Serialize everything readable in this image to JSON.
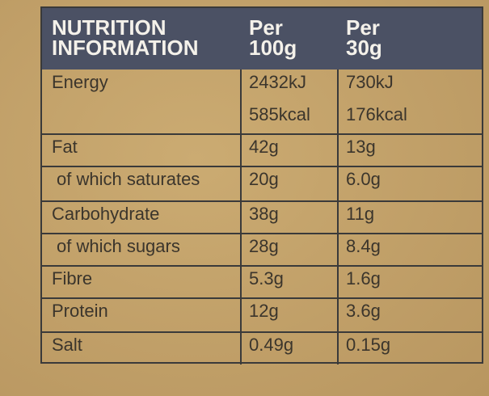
{
  "header": {
    "title": [
      "NUTRITION",
      "INFORMATION"
    ],
    "per_100g": [
      "Per",
      "100g"
    ],
    "per_30g": [
      "Per",
      "30g"
    ]
  },
  "rows": [
    {
      "nutrient": "Energy",
      "per_100g": [
        "2432kJ",
        "585kcal"
      ],
      "per_30g": [
        "730kJ",
        "176kcal"
      ]
    },
    {
      "nutrient": "Fat",
      "per_100g": [
        "42g"
      ],
      "per_30g": [
        "13g"
      ]
    },
    {
      "nutrient": "of which saturates",
      "per_100g": [
        "20g"
      ],
      "per_30g": [
        "6.0g"
      ]
    },
    {
      "nutrient": "Carbohydrate",
      "per_100g": [
        "38g"
      ],
      "per_30g": [
        "11g"
      ]
    },
    {
      "nutrient": "of which sugars",
      "per_100g": [
        "28g"
      ],
      "per_30g": [
        "8.4g"
      ]
    },
    {
      "nutrient": "Fibre",
      "per_100g": [
        "5.3g"
      ],
      "per_30g": [
        "1.6g"
      ]
    },
    {
      "nutrient": "Protein",
      "per_100g": [
        "12g"
      ],
      "per_30g": [
        "3.6g"
      ]
    },
    {
      "nutrient": "Salt",
      "per_100g": [
        "0.49g"
      ],
      "per_30g": [
        "0.15g"
      ]
    }
  ]
}
